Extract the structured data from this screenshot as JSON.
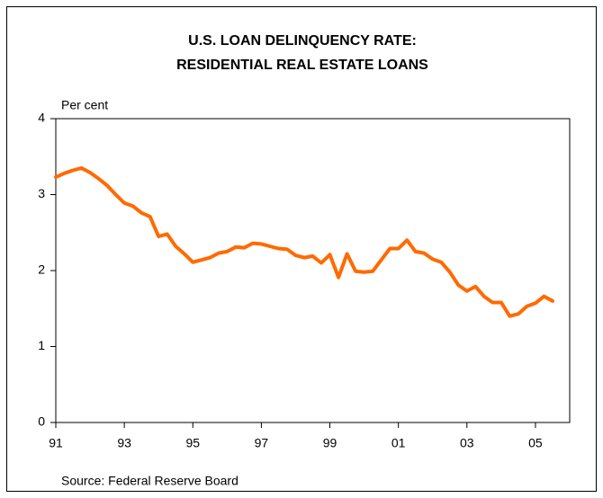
{
  "chart_data": {
    "type": "line",
    "title": [
      "U.S. LOAN DELINQUENCY RATE:",
      "RESIDENTIAL REAL ESTATE LOANS"
    ],
    "y_label": "Per cent",
    "source": "Source: Federal Reserve Board",
    "x": [
      1991,
      1991.25,
      1991.5,
      1991.75,
      1992,
      1992.25,
      1992.5,
      1992.75,
      1993,
      1993.25,
      1993.5,
      1993.75,
      1994,
      1994.25,
      1994.5,
      1994.75,
      1995,
      1995.25,
      1995.5,
      1995.75,
      1996,
      1996.25,
      1996.5,
      1996.75,
      1997,
      1997.25,
      1997.5,
      1997.75,
      1998,
      1998.25,
      1998.5,
      1998.75,
      1999,
      1999.25,
      1999.5,
      1999.75,
      2000,
      2000.25,
      2000.5,
      2000.75,
      2001,
      2001.25,
      2001.5,
      2001.75,
      2002,
      2002.25,
      2002.5,
      2002.75,
      2003,
      2003.25,
      2003.5,
      2003.75,
      2004,
      2004.25,
      2004.5,
      2004.75,
      2005,
      2005.25,
      2005.5
    ],
    "series": [
      {
        "name": "Delinquency rate",
        "color": "#ff6a00",
        "values": [
          3.23,
          3.28,
          3.32,
          3.35,
          3.29,
          3.21,
          3.12,
          3.0,
          2.89,
          2.85,
          2.76,
          2.71,
          2.45,
          2.48,
          2.32,
          2.22,
          2.11,
          2.14,
          2.17,
          2.23,
          2.25,
          2.31,
          2.3,
          2.36,
          2.35,
          2.32,
          2.29,
          2.28,
          2.2,
          2.17,
          2.19,
          2.1,
          2.21,
          1.91,
          2.22,
          1.99,
          1.98,
          1.99,
          2.14,
          2.29,
          2.29,
          2.4,
          2.25,
          2.23,
          2.15,
          2.11,
          1.98,
          1.81,
          1.73,
          1.79,
          1.66,
          1.58,
          1.58,
          1.4,
          1.43,
          1.53,
          1.57,
          1.66,
          1.6
        ]
      }
    ],
    "xlim": [
      1991,
      2006
    ],
    "xticks": [
      {
        "value": 1991,
        "label": "91"
      },
      {
        "value": 1993,
        "label": "93"
      },
      {
        "value": 1995,
        "label": "95"
      },
      {
        "value": 1997,
        "label": "97"
      },
      {
        "value": 1999,
        "label": "99"
      },
      {
        "value": 2001,
        "label": "01"
      },
      {
        "value": 2003,
        "label": "03"
      },
      {
        "value": 2005,
        "label": "05"
      }
    ],
    "ylim": [
      0,
      4
    ],
    "yticks": [
      0,
      1,
      2,
      3,
      4
    ]
  }
}
